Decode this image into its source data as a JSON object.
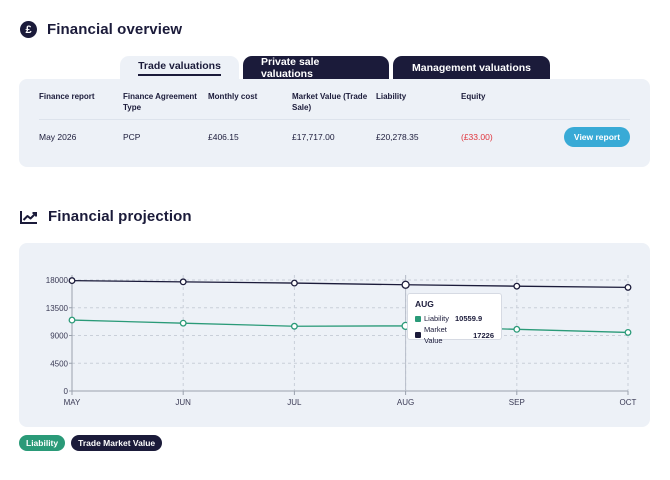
{
  "overview": {
    "title": "Financial overview",
    "icon": "pound-icon"
  },
  "tabs": [
    {
      "label": "Trade valuations",
      "active": true
    },
    {
      "label": "Private sale valuations",
      "active": false
    },
    {
      "label": "Management valuations",
      "active": false
    }
  ],
  "table": {
    "headers": [
      "Finance report",
      "Finance Agreement Type",
      "Monthly cost",
      "Market Value (Trade Sale)",
      "Liability",
      "Equity"
    ],
    "row": [
      "May 2026",
      "PCP",
      "£406.15",
      "£17,717.00",
      "£20,278.35",
      "(£33.00)"
    ],
    "button": "View report"
  },
  "projection": {
    "title": "Financial projection",
    "icon": "trend-chart-icon"
  },
  "chart_data": {
    "type": "line",
    "categories": [
      "MAY",
      "JUN",
      "JUL",
      "AUG",
      "SEP",
      "OCT"
    ],
    "series": [
      {
        "name": "Liability",
        "color": "#2a9a78",
        "values": [
          11500,
          11000,
          10500,
          10559.9,
          10000,
          9500
        ]
      },
      {
        "name": "Trade Market Value",
        "color": "#1b1b3a",
        "values": [
          17900,
          17700,
          17500,
          17226,
          17000,
          16800
        ]
      }
    ],
    "yticks": [
      0,
      4500,
      9000,
      13500,
      18000
    ],
    "ylim": [
      0,
      18000
    ],
    "grid": true,
    "tooltip": {
      "title": "AUG",
      "rows": [
        {
          "label": "Liability",
          "value": "10559.9"
        },
        {
          "label": "Market Value",
          "value": "17226"
        }
      ]
    }
  },
  "legend": [
    {
      "label": "Liability",
      "color": "#2a9a78"
    },
    {
      "label": "Trade Market Value",
      "color": "#1b1b3a"
    }
  ]
}
